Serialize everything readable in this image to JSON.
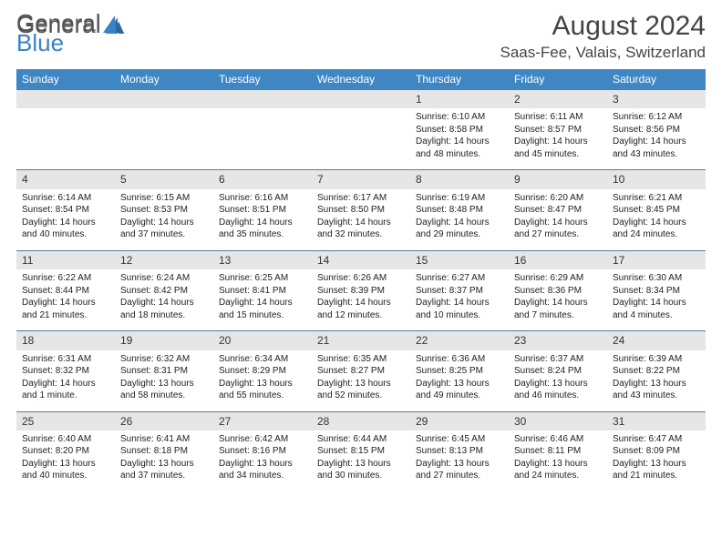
{
  "logo": {
    "general": "General",
    "blue": "Blue"
  },
  "header": {
    "month": "August 2024",
    "location": "Saas-Fee, Valais, Switzerland"
  },
  "colors": {
    "header_bar": "#3e87c3",
    "day_num_bg": "#e6e6e6",
    "border": "#5b7a99",
    "logo_blue": "#3b82c4"
  },
  "dow": [
    "Sunday",
    "Monday",
    "Tuesday",
    "Wednesday",
    "Thursday",
    "Friday",
    "Saturday"
  ],
  "weeks": [
    [
      null,
      null,
      null,
      null,
      {
        "n": "1",
        "sr": "Sunrise: 6:10 AM",
        "ss": "Sunset: 8:58 PM",
        "d1": "Daylight: 14 hours",
        "d2": "and 48 minutes."
      },
      {
        "n": "2",
        "sr": "Sunrise: 6:11 AM",
        "ss": "Sunset: 8:57 PM",
        "d1": "Daylight: 14 hours",
        "d2": "and 45 minutes."
      },
      {
        "n": "3",
        "sr": "Sunrise: 6:12 AM",
        "ss": "Sunset: 8:56 PM",
        "d1": "Daylight: 14 hours",
        "d2": "and 43 minutes."
      }
    ],
    [
      {
        "n": "4",
        "sr": "Sunrise: 6:14 AM",
        "ss": "Sunset: 8:54 PM",
        "d1": "Daylight: 14 hours",
        "d2": "and 40 minutes."
      },
      {
        "n": "5",
        "sr": "Sunrise: 6:15 AM",
        "ss": "Sunset: 8:53 PM",
        "d1": "Daylight: 14 hours",
        "d2": "and 37 minutes."
      },
      {
        "n": "6",
        "sr": "Sunrise: 6:16 AM",
        "ss": "Sunset: 8:51 PM",
        "d1": "Daylight: 14 hours",
        "d2": "and 35 minutes."
      },
      {
        "n": "7",
        "sr": "Sunrise: 6:17 AM",
        "ss": "Sunset: 8:50 PM",
        "d1": "Daylight: 14 hours",
        "d2": "and 32 minutes."
      },
      {
        "n": "8",
        "sr": "Sunrise: 6:19 AM",
        "ss": "Sunset: 8:48 PM",
        "d1": "Daylight: 14 hours",
        "d2": "and 29 minutes."
      },
      {
        "n": "9",
        "sr": "Sunrise: 6:20 AM",
        "ss": "Sunset: 8:47 PM",
        "d1": "Daylight: 14 hours",
        "d2": "and 27 minutes."
      },
      {
        "n": "10",
        "sr": "Sunrise: 6:21 AM",
        "ss": "Sunset: 8:45 PM",
        "d1": "Daylight: 14 hours",
        "d2": "and 24 minutes."
      }
    ],
    [
      {
        "n": "11",
        "sr": "Sunrise: 6:22 AM",
        "ss": "Sunset: 8:44 PM",
        "d1": "Daylight: 14 hours",
        "d2": "and 21 minutes."
      },
      {
        "n": "12",
        "sr": "Sunrise: 6:24 AM",
        "ss": "Sunset: 8:42 PM",
        "d1": "Daylight: 14 hours",
        "d2": "and 18 minutes."
      },
      {
        "n": "13",
        "sr": "Sunrise: 6:25 AM",
        "ss": "Sunset: 8:41 PM",
        "d1": "Daylight: 14 hours",
        "d2": "and 15 minutes."
      },
      {
        "n": "14",
        "sr": "Sunrise: 6:26 AM",
        "ss": "Sunset: 8:39 PM",
        "d1": "Daylight: 14 hours",
        "d2": "and 12 minutes."
      },
      {
        "n": "15",
        "sr": "Sunrise: 6:27 AM",
        "ss": "Sunset: 8:37 PM",
        "d1": "Daylight: 14 hours",
        "d2": "and 10 minutes."
      },
      {
        "n": "16",
        "sr": "Sunrise: 6:29 AM",
        "ss": "Sunset: 8:36 PM",
        "d1": "Daylight: 14 hours",
        "d2": "and 7 minutes."
      },
      {
        "n": "17",
        "sr": "Sunrise: 6:30 AM",
        "ss": "Sunset: 8:34 PM",
        "d1": "Daylight: 14 hours",
        "d2": "and 4 minutes."
      }
    ],
    [
      {
        "n": "18",
        "sr": "Sunrise: 6:31 AM",
        "ss": "Sunset: 8:32 PM",
        "d1": "Daylight: 14 hours",
        "d2": "and 1 minute."
      },
      {
        "n": "19",
        "sr": "Sunrise: 6:32 AM",
        "ss": "Sunset: 8:31 PM",
        "d1": "Daylight: 13 hours",
        "d2": "and 58 minutes."
      },
      {
        "n": "20",
        "sr": "Sunrise: 6:34 AM",
        "ss": "Sunset: 8:29 PM",
        "d1": "Daylight: 13 hours",
        "d2": "and 55 minutes."
      },
      {
        "n": "21",
        "sr": "Sunrise: 6:35 AM",
        "ss": "Sunset: 8:27 PM",
        "d1": "Daylight: 13 hours",
        "d2": "and 52 minutes."
      },
      {
        "n": "22",
        "sr": "Sunrise: 6:36 AM",
        "ss": "Sunset: 8:25 PM",
        "d1": "Daylight: 13 hours",
        "d2": "and 49 minutes."
      },
      {
        "n": "23",
        "sr": "Sunrise: 6:37 AM",
        "ss": "Sunset: 8:24 PM",
        "d1": "Daylight: 13 hours",
        "d2": "and 46 minutes."
      },
      {
        "n": "24",
        "sr": "Sunrise: 6:39 AM",
        "ss": "Sunset: 8:22 PM",
        "d1": "Daylight: 13 hours",
        "d2": "and 43 minutes."
      }
    ],
    [
      {
        "n": "25",
        "sr": "Sunrise: 6:40 AM",
        "ss": "Sunset: 8:20 PM",
        "d1": "Daylight: 13 hours",
        "d2": "and 40 minutes."
      },
      {
        "n": "26",
        "sr": "Sunrise: 6:41 AM",
        "ss": "Sunset: 8:18 PM",
        "d1": "Daylight: 13 hours",
        "d2": "and 37 minutes."
      },
      {
        "n": "27",
        "sr": "Sunrise: 6:42 AM",
        "ss": "Sunset: 8:16 PM",
        "d1": "Daylight: 13 hours",
        "d2": "and 34 minutes."
      },
      {
        "n": "28",
        "sr": "Sunrise: 6:44 AM",
        "ss": "Sunset: 8:15 PM",
        "d1": "Daylight: 13 hours",
        "d2": "and 30 minutes."
      },
      {
        "n": "29",
        "sr": "Sunrise: 6:45 AM",
        "ss": "Sunset: 8:13 PM",
        "d1": "Daylight: 13 hours",
        "d2": "and 27 minutes."
      },
      {
        "n": "30",
        "sr": "Sunrise: 6:46 AM",
        "ss": "Sunset: 8:11 PM",
        "d1": "Daylight: 13 hours",
        "d2": "and 24 minutes."
      },
      {
        "n": "31",
        "sr": "Sunrise: 6:47 AM",
        "ss": "Sunset: 8:09 PM",
        "d1": "Daylight: 13 hours",
        "d2": "and 21 minutes."
      }
    ]
  ]
}
